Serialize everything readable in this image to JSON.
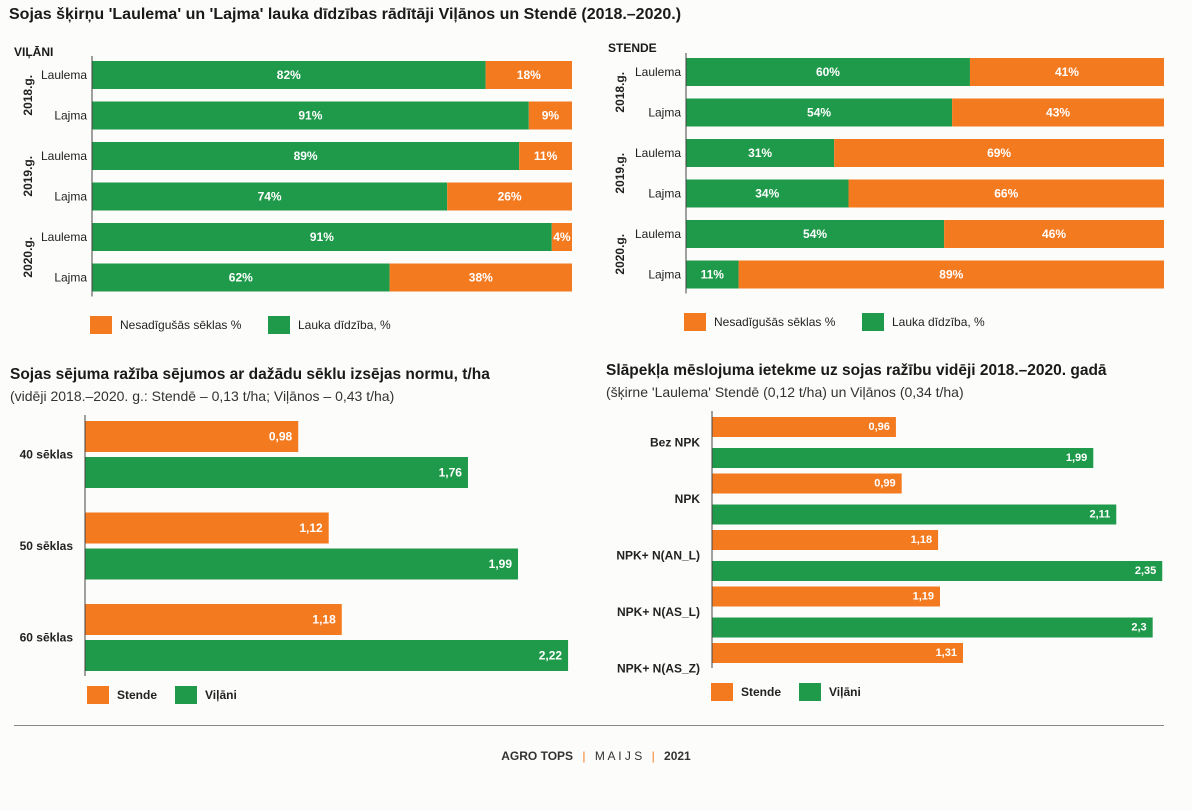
{
  "colors": {
    "green": "#1f9a4a",
    "orange": "#f47a20"
  },
  "page_title": "Sojas šķirņu 'Laulema' un 'Lajma' lauka dīdzības rādītāji Viļānos un Stendē (2018.–2020.)",
  "chart_data": [
    {
      "type": "bar",
      "stacked": true,
      "panel": "VIĻĀNI",
      "groups": [
        "2018.g.",
        "2019.g.",
        "2020.g."
      ],
      "categories": [
        "Laulema",
        "Lajma",
        "Laulema",
        "Lajma",
        "Laulema",
        "Lajma"
      ],
      "category_groups": [
        "2018.g.",
        "2018.g.",
        "2019.g.",
        "2019.g.",
        "2020.g.",
        "2020.g."
      ],
      "series": [
        {
          "name": "Lauka dīdzība, %",
          "values": [
            82,
            91,
            89,
            74,
            91,
            62
          ],
          "labels": [
            "82%",
            "91%",
            "89%",
            "74%",
            "91%",
            "62%"
          ]
        },
        {
          "name": "Nesadīgušās sēklas %",
          "values": [
            18,
            9,
            11,
            26,
            4,
            38
          ],
          "labels": [
            "18%",
            "9%",
            "11%",
            "26%",
            "4%",
            "38%"
          ]
        }
      ],
      "legend": [
        "Nesadīgušās sēklas %",
        "Lauka dīdzība, %"
      ],
      "legend_position": "bottom"
    },
    {
      "type": "bar",
      "stacked": true,
      "panel": "STENDE",
      "groups": [
        "2018.g.",
        "2019.g.",
        "2020.g."
      ],
      "categories": [
        "Laulema",
        "Lajma",
        "Laulema",
        "Lajma",
        "Laulema",
        "Lajma"
      ],
      "category_groups": [
        "2018.g.",
        "2018.g.",
        "2019.g.",
        "2019.g.",
        "2020.g.",
        "2020.g."
      ],
      "series": [
        {
          "name": "Lauka dīdzība, %",
          "values": [
            60,
            54,
            31,
            34,
            54,
            11
          ],
          "labels": [
            "60%",
            "54%",
            "31%",
            "34%",
            "54%",
            "11%"
          ]
        },
        {
          "name": "Nesadīgušās sēklas %",
          "values": [
            41,
            43,
            69,
            66,
            46,
            89
          ],
          "labels": [
            "41%",
            "43%",
            "69%",
            "66%",
            "46%",
            "89%"
          ]
        }
      ],
      "legend": [
        "Nesadīgušās sēklas %",
        "Lauka dīdzība, %"
      ],
      "legend_position": "bottom"
    },
    {
      "type": "bar",
      "title": "Sojas sējuma ražība sējumos ar dažādu sēklu izsējas normu, t/ha",
      "subtitle": "(vidēji 2018.–2020. g.: Stendē – 0,13 t/ha; Viļānos – 0,43 t/ha)",
      "categories": [
        "40 sēklas",
        "50 sēklas",
        "60 sēklas"
      ],
      "series": [
        {
          "name": "Stende",
          "values": [
            0.98,
            1.12,
            1.18
          ],
          "labels": [
            "0,98",
            "1,12",
            "1,18"
          ]
        },
        {
          "name": "Viļāni",
          "values": [
            1.76,
            1.99,
            2.22
          ],
          "labels": [
            "1,76",
            "1,99",
            "2,22"
          ]
        }
      ],
      "legend": [
        "Stende",
        "Viļāni"
      ],
      "legend_position": "bottom"
    },
    {
      "type": "bar",
      "title": "Slāpekļa mēslojuma ietekme uz sojas ražību vidēji 2018.–2020. gadā",
      "subtitle": "(šķirne 'Laulema' Stendē (0,12 t/ha) un Viļānos (0,34 t/ha)",
      "categories": [
        "Bez NPK",
        "NPK",
        "NPK+ N(AN_L)",
        "NPK+ N(AS_L)",
        "NPK+ N(AS_Z)"
      ],
      "series": [
        {
          "name": "Stende",
          "values": [
            0.96,
            0.99,
            1.18,
            1.19,
            1.31
          ],
          "labels": [
            "0,96",
            "0,99",
            "1,18",
            "1,19",
            "1,31"
          ]
        },
        {
          "name": "Viļāni",
          "values": [
            1.99,
            2.11,
            2.35,
            2.3,
            null
          ],
          "labels": [
            "1,99",
            "2,11",
            "2,35",
            "2,3",
            ""
          ]
        }
      ],
      "legend": [
        "Stende",
        "Viļāni"
      ],
      "legend_position": "bottom"
    }
  ],
  "footer": {
    "brand": "AGRO TOPS",
    "separator": "|",
    "month": "M A I J S",
    "year": "2021"
  }
}
